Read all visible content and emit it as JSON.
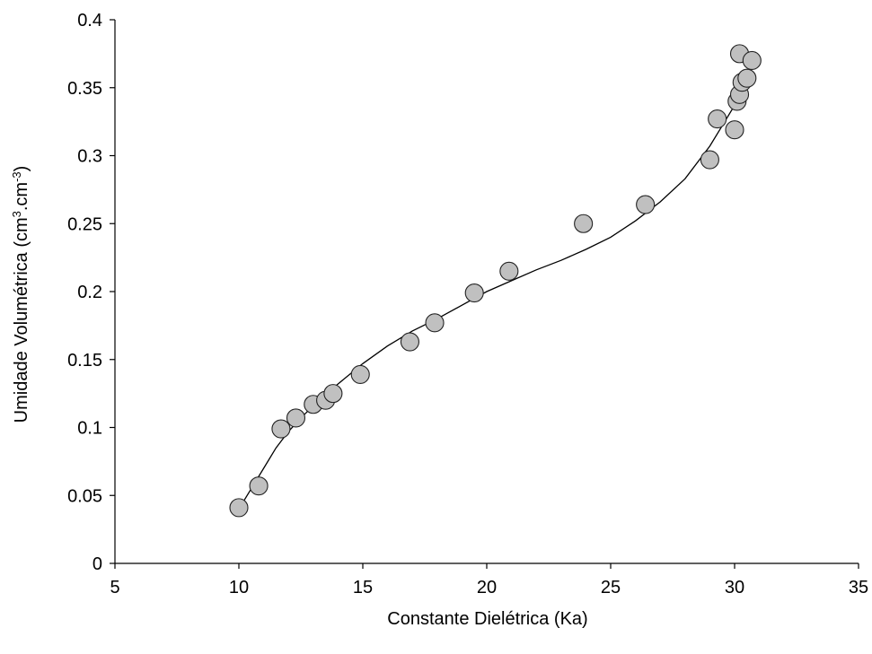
{
  "chart_data": {
    "type": "scatter",
    "title": "",
    "xlabel": "Constante Dielétrica (Ka)",
    "ylabel": {
      "prefix": "Umidade Volumétrica (cm",
      "sup1": "3",
      "middle": ".cm",
      "sup2": "-3",
      "suffix": ")"
    },
    "xlim": [
      5,
      35
    ],
    "ylim": [
      0,
      0.4
    ],
    "x_ticks": [
      "5",
      "10",
      "15",
      "20",
      "25",
      "30",
      "35"
    ],
    "y_ticks": [
      "0",
      "0.05",
      "0.1",
      "0.15",
      "0.2",
      "0.25",
      "0.3",
      "0.35",
      "0.4"
    ],
    "grid": false,
    "legend": "none",
    "marker_fill": "#c0c0c0",
    "marker_stroke": "#222222",
    "line_color": "#000000",
    "series": [
      {
        "kind": "points",
        "points": [
          {
            "x": 10.0,
            "y": 0.041
          },
          {
            "x": 10.8,
            "y": 0.057
          },
          {
            "x": 11.7,
            "y": 0.099
          },
          {
            "x": 12.3,
            "y": 0.107
          },
          {
            "x": 13.0,
            "y": 0.117
          },
          {
            "x": 13.5,
            "y": 0.12
          },
          {
            "x": 13.8,
            "y": 0.125
          },
          {
            "x": 14.9,
            "y": 0.139
          },
          {
            "x": 16.9,
            "y": 0.163
          },
          {
            "x": 17.9,
            "y": 0.177
          },
          {
            "x": 19.5,
            "y": 0.199
          },
          {
            "x": 20.9,
            "y": 0.215
          },
          {
            "x": 23.9,
            "y": 0.25
          },
          {
            "x": 26.4,
            "y": 0.264
          },
          {
            "x": 29.0,
            "y": 0.297
          },
          {
            "x": 29.3,
            "y": 0.327
          },
          {
            "x": 30.0,
            "y": 0.319
          },
          {
            "x": 30.1,
            "y": 0.34
          },
          {
            "x": 30.2,
            "y": 0.345
          },
          {
            "x": 30.2,
            "y": 0.375
          },
          {
            "x": 30.3,
            "y": 0.354
          },
          {
            "x": 30.5,
            "y": 0.357
          },
          {
            "x": 30.7,
            "y": 0.37
          }
        ]
      },
      {
        "kind": "trend",
        "points": [
          {
            "x": 10.0,
            "y": 0.04
          },
          {
            "x": 10.5,
            "y": 0.055
          },
          {
            "x": 11.0,
            "y": 0.07
          },
          {
            "x": 11.5,
            "y": 0.085
          },
          {
            "x": 12.0,
            "y": 0.097
          },
          {
            "x": 12.5,
            "y": 0.107
          },
          {
            "x": 13.0,
            "y": 0.116
          },
          {
            "x": 14.0,
            "y": 0.132
          },
          {
            "x": 15.0,
            "y": 0.147
          },
          {
            "x": 16.0,
            "y": 0.16
          },
          {
            "x": 17.0,
            "y": 0.171
          },
          {
            "x": 18.0,
            "y": 0.18
          },
          {
            "x": 19.0,
            "y": 0.19
          },
          {
            "x": 20.0,
            "y": 0.2
          },
          {
            "x": 21.0,
            "y": 0.208
          },
          {
            "x": 22.0,
            "y": 0.216
          },
          {
            "x": 23.0,
            "y": 0.223
          },
          {
            "x": 24.0,
            "y": 0.231
          },
          {
            "x": 25.0,
            "y": 0.24
          },
          {
            "x": 26.0,
            "y": 0.252
          },
          {
            "x": 27.0,
            "y": 0.266
          },
          {
            "x": 28.0,
            "y": 0.283
          },
          {
            "x": 29.0,
            "y": 0.307
          },
          {
            "x": 29.5,
            "y": 0.322
          },
          {
            "x": 30.0,
            "y": 0.337
          },
          {
            "x": 30.5,
            "y": 0.353
          },
          {
            "x": 30.7,
            "y": 0.36
          }
        ]
      }
    ]
  }
}
